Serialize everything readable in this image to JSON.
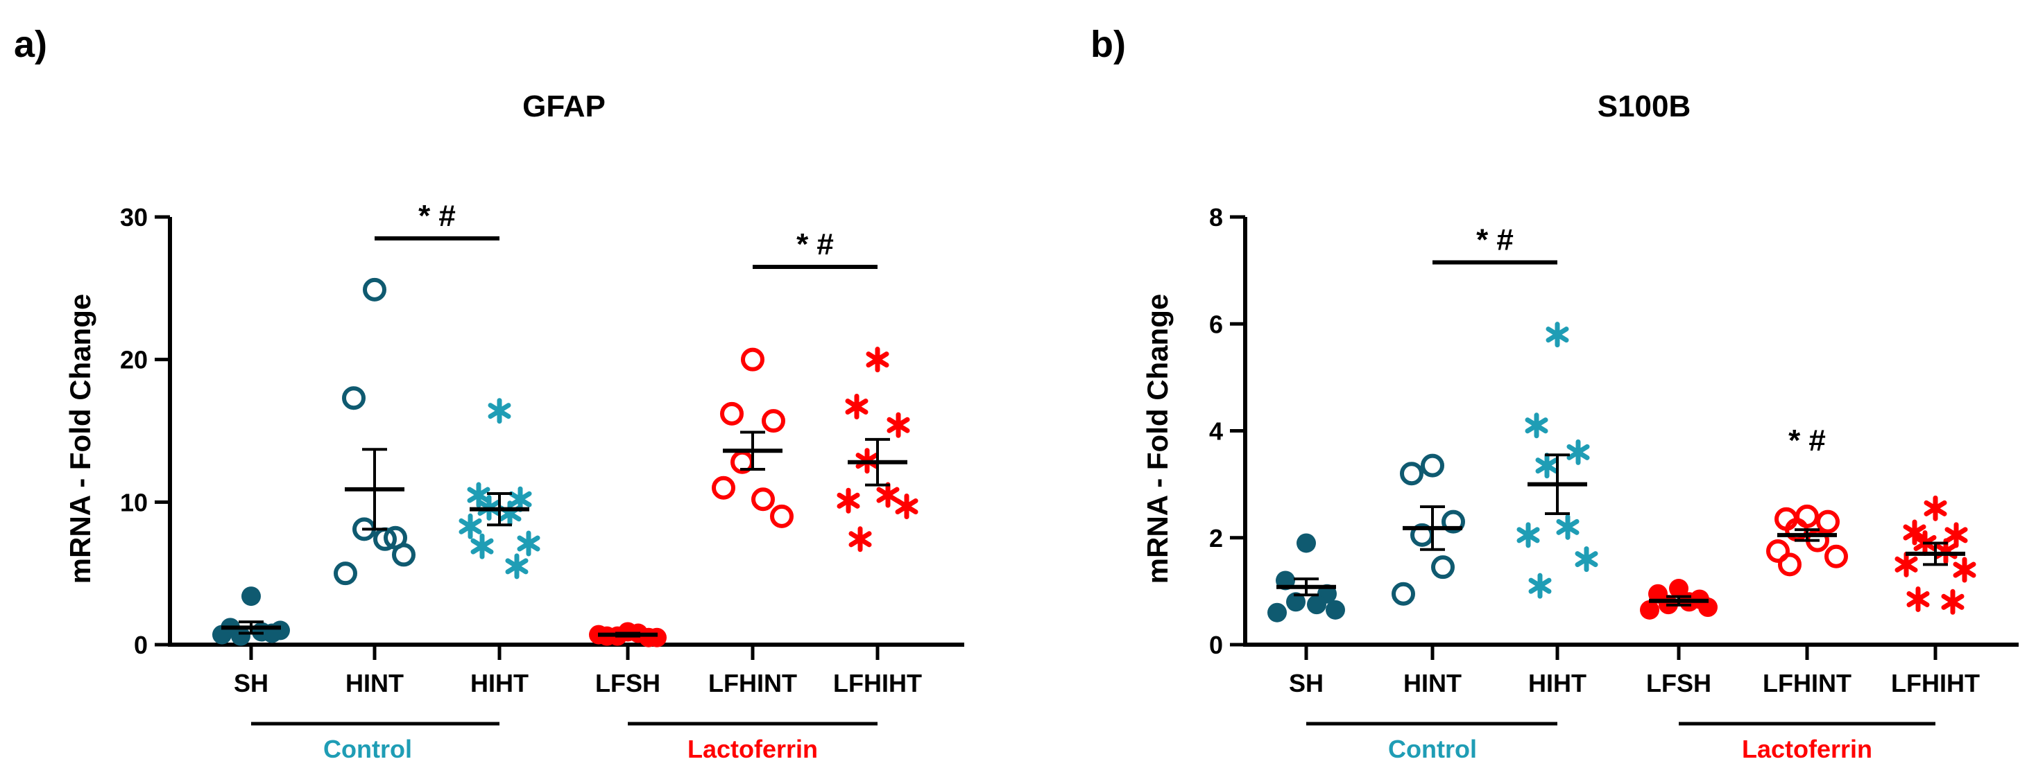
{
  "panels": [
    {
      "letter": "a)"
    },
    {
      "letter": "b)"
    }
  ],
  "groups": {
    "control": "Control",
    "lactoferrin": "Lactoferrin"
  },
  "colors": {
    "teal_dark": "#0f5a70",
    "teal": "#1f9db5",
    "red": "#ff0000",
    "axis": "#000000",
    "control_text": "#1f9db5",
    "lacto_text": "#ff0000"
  },
  "chart_data": [
    {
      "type": "scatter",
      "title": "GFAP",
      "ylabel": "mRNA - Fold Change",
      "ylim": [
        0,
        30
      ],
      "yticks": [
        0,
        10,
        20,
        30
      ],
      "categories": [
        "SH",
        "HINT",
        "HIHT",
        "LFSH",
        "LFHINT",
        "LFHIHT"
      ],
      "series": [
        {
          "category": "SH",
          "marker": "filled-circle",
          "color": "teal_dark",
          "mean": 1.2,
          "sem": 0.4,
          "points": [
            3.4,
            1.2,
            0.8,
            0.6,
            0.9,
            0.7,
            1.0
          ]
        },
        {
          "category": "HINT",
          "marker": "open-circle",
          "color": "teal_dark",
          "mean": 10.9,
          "sem": 2.8,
          "points": [
            24.9,
            17.3,
            7.5,
            8.1,
            7.4,
            5.0,
            6.3
          ]
        },
        {
          "category": "HIHT",
          "marker": "asterisk",
          "color": "teal",
          "mean": 9.5,
          "sem": 1.1,
          "points": [
            16.4,
            10.5,
            10.2,
            9.6,
            9.2,
            8.3,
            7.1,
            6.9,
            5.5
          ]
        },
        {
          "category": "LFSH",
          "marker": "filled-circle",
          "color": "red",
          "mean": 0.7,
          "sem": 0.1,
          "points": [
            0.9,
            0.6,
            0.5,
            0.6,
            0.8,
            0.7,
            0.5
          ]
        },
        {
          "category": "LFHINT",
          "marker": "open-circle",
          "color": "red",
          "mean": 13.6,
          "sem": 1.3,
          "points": [
            20.0,
            16.2,
            15.7,
            12.8,
            10.2,
            11.0,
            9.0
          ]
        },
        {
          "category": "LFHIHT",
          "marker": "asterisk",
          "color": "red",
          "mean": 12.8,
          "sem": 1.6,
          "points": [
            20.0,
            16.7,
            15.4,
            12.9,
            10.5,
            10.1,
            9.7,
            7.4
          ]
        }
      ],
      "significance": [
        {
          "from": "HINT",
          "to": "HIHT",
          "y": 28.5,
          "label": "*  #"
        },
        {
          "from": "LFHINT",
          "to": "LFHIHT",
          "y": 26.5,
          "label": "*  #"
        }
      ]
    },
    {
      "type": "scatter",
      "title": "S100B",
      "ylabel": "mRNA - Fold Change",
      "ylim": [
        0,
        8
      ],
      "yticks": [
        0,
        2,
        4,
        6,
        8
      ],
      "categories": [
        "SH",
        "HINT",
        "HIHT",
        "LFSH",
        "LFHINT",
        "LFHIHT"
      ],
      "series": [
        {
          "category": "SH",
          "marker": "filled-circle",
          "color": "teal_dark",
          "mean": 1.08,
          "sem": 0.15,
          "points": [
            1.9,
            1.2,
            0.95,
            0.8,
            0.75,
            0.6,
            0.65
          ]
        },
        {
          "category": "HINT",
          "marker": "open-circle",
          "color": "teal_dark",
          "mean": 2.18,
          "sem": 0.4,
          "points": [
            3.35,
            3.2,
            2.3,
            2.05,
            1.45,
            0.95
          ]
        },
        {
          "category": "HIHT",
          "marker": "asterisk",
          "color": "teal",
          "mean": 3.0,
          "sem": 0.55,
          "points": [
            5.8,
            4.1,
            3.6,
            3.35,
            2.2,
            2.05,
            1.6,
            1.1
          ]
        },
        {
          "category": "LFSH",
          "marker": "filled-circle",
          "color": "red",
          "mean": 0.82,
          "sem": 0.08,
          "points": [
            1.05,
            0.95,
            0.85,
            0.75,
            0.8,
            0.65,
            0.7
          ]
        },
        {
          "category": "LFHINT",
          "marker": "open-circle",
          "color": "red",
          "mean": 2.05,
          "sem": 0.1,
          "points": [
            2.4,
            2.35,
            2.3,
            2.15,
            1.95,
            1.75,
            1.65,
            1.5
          ]
        },
        {
          "category": "LFHIHT",
          "marker": "asterisk",
          "color": "red",
          "mean": 1.7,
          "sem": 0.2,
          "points": [
            2.55,
            2.1,
            2.05,
            1.9,
            1.75,
            1.5,
            1.4,
            0.85,
            0.8
          ]
        }
      ],
      "significance": [
        {
          "from": "HINT",
          "to": "HIHT",
          "y": 7.15,
          "label": "*  #"
        },
        {
          "category": "LFHINT",
          "y": 3.4,
          "label": "*  #"
        }
      ]
    }
  ]
}
